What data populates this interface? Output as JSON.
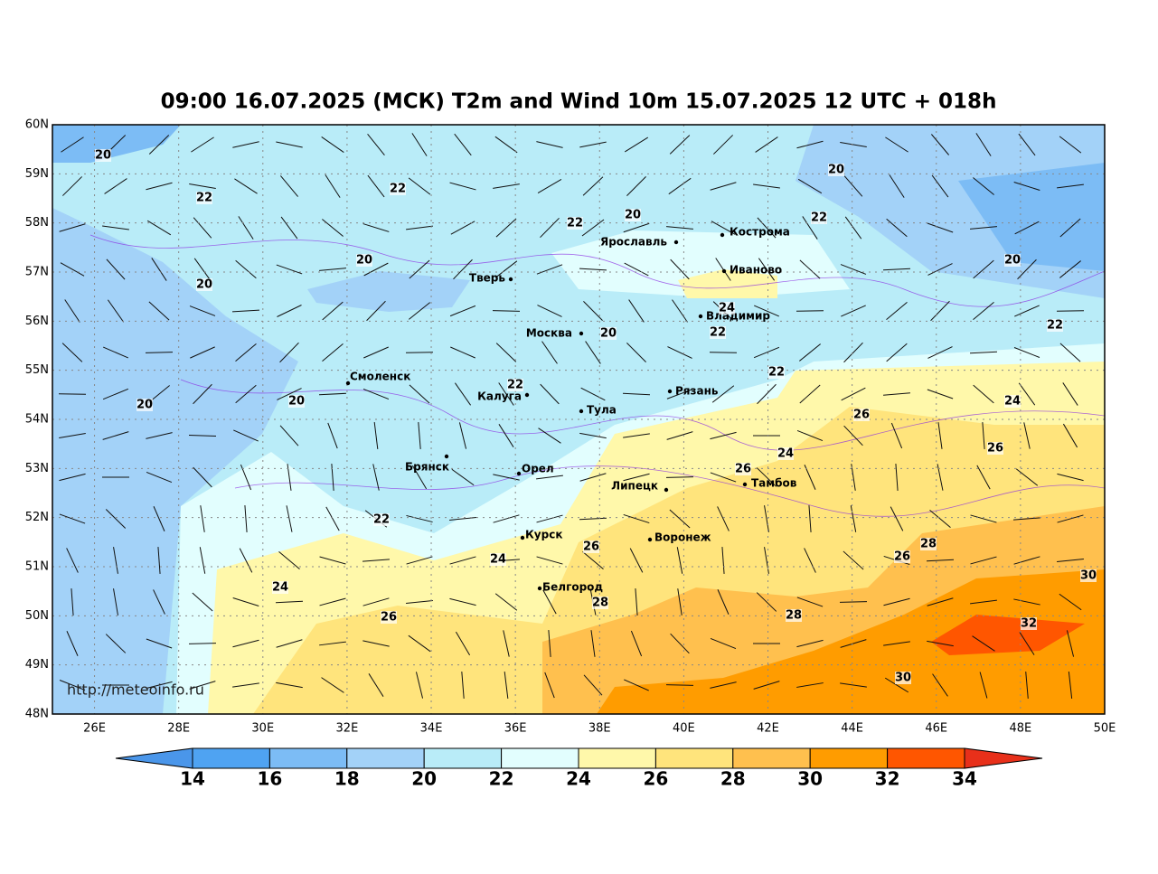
{
  "title": "09:00 16.07.2025 (МСК) T2m and Wind 10m 15.07.2025 12 UTC + 018h",
  "lat_labels": [
    "60N",
    "59N",
    "58N",
    "57N",
    "56N",
    "55N",
    "54N",
    "53N",
    "52N",
    "51N",
    "50N",
    "49N",
    "48N"
  ],
  "lon_labels": [
    "26E",
    "28E",
    "30E",
    "32E",
    "34E",
    "36E",
    "38E",
    "40E",
    "42E",
    "44E",
    "46E",
    "48E",
    "50E"
  ],
  "cities": [
    "Кострома",
    "Ярославль",
    "Иваново",
    "Тверь",
    "Москва",
    "Владимир",
    "Смоленск",
    "Калуга",
    "Тула",
    "Рязань",
    "Брянск",
    "Орел",
    "Липецк",
    "Тамбов",
    "Курск",
    "Воронеж",
    "Белгород"
  ],
  "contour_labels": [
    20,
    22,
    22,
    20,
    22,
    20,
    22,
    20,
    20,
    20,
    24,
    20,
    22,
    22,
    22,
    22,
    20,
    20,
    26,
    24,
    26,
    24,
    26,
    22,
    26,
    24,
    28,
    26,
    30,
    24,
    28,
    28,
    26,
    32,
    30
  ],
  "colorbar": {
    "ticks": [
      14,
      16,
      18,
      20,
      22,
      24,
      26,
      28,
      30,
      32,
      34
    ],
    "colors": [
      "#4a96ea",
      "#4fa3f2",
      "#7cbcf5",
      "#a3d2f8",
      "#b9ecf8",
      "#e2fefe",
      "#fff8aa",
      "#ffe47c",
      "#ffc04e",
      "#ff9c00",
      "#ff5600",
      "#e8301a"
    ]
  },
  "url": "http://meteoinfo.ru"
}
